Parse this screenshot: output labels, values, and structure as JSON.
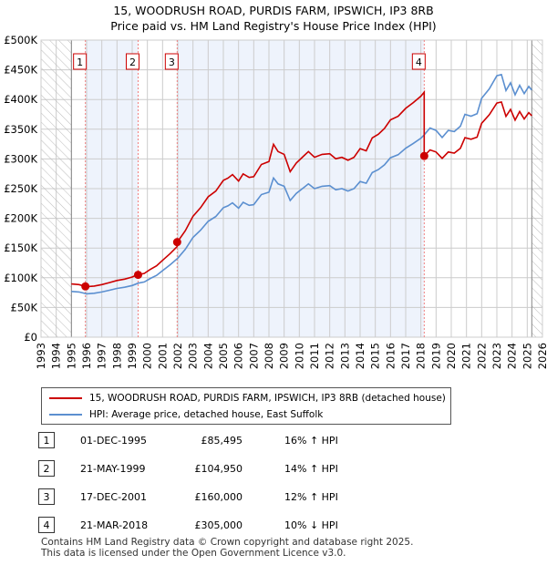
{
  "title_line1": "15, WOODRUSH ROAD, PURDIS FARM, IPSWICH, IP3 8RB",
  "title_line2": "Price paid vs. HM Land Registry's House Price Index (HPI)",
  "colors": {
    "property": "#cc0000",
    "hpi": "#5b8fd0",
    "shade": "#eef3fc"
  },
  "chart_data": {
    "type": "line",
    "xlim": [
      1993,
      2026
    ],
    "ylim": [
      0,
      500000
    ],
    "x_ticks": [
      "1993",
      "1994",
      "1995",
      "1996",
      "1997",
      "1998",
      "1999",
      "2000",
      "2001",
      "2002",
      "2003",
      "2004",
      "2005",
      "2006",
      "2007",
      "2008",
      "2009",
      "2010",
      "2011",
      "2012",
      "2013",
      "2014",
      "2015",
      "2016",
      "2017",
      "2018",
      "2019",
      "2020",
      "2021",
      "2022",
      "2023",
      "2024",
      "2025",
      "2026"
    ],
    "y_ticks": [
      {
        "v": 0,
        "label": "£0"
      },
      {
        "v": 50000,
        "label": "£50K"
      },
      {
        "v": 100000,
        "label": "£100K"
      },
      {
        "v": 150000,
        "label": "£150K"
      },
      {
        "v": 200000,
        "label": "£200K"
      },
      {
        "v": 250000,
        "label": "£250K"
      },
      {
        "v": 300000,
        "label": "£300K"
      },
      {
        "v": 350000,
        "label": "£350K"
      },
      {
        "v": 400000,
        "label": "£400K"
      },
      {
        "v": 450000,
        "label": "£450K"
      },
      {
        "v": 500000,
        "label": "£500K"
      }
    ],
    "hatched_ranges": [
      [
        1993,
        1995
      ],
      [
        2025.3,
        2026
      ]
    ],
    "hpi_series": {
      "name": "HPI: Average price, detached house, East Suffolk",
      "x": [
        1995,
        1995.5,
        1996,
        1996.5,
        1997,
        1997.5,
        1998,
        1998.5,
        1999,
        1999.4,
        1999.8,
        2000.2,
        2000.6,
        2001,
        2001.5,
        2002,
        2002.5,
        2003,
        2003.5,
        2004,
        2004.5,
        2005,
        2005.3,
        2005.6,
        2006,
        2006.3,
        2006.7,
        2007,
        2007.5,
        2008,
        2008.3,
        2008.6,
        2009,
        2009.4,
        2009.8,
        2010.3,
        2010.6,
        2011,
        2011.5,
        2012,
        2012.4,
        2012.8,
        2013.2,
        2013.6,
        2014,
        2014.4,
        2014.8,
        2015.2,
        2015.6,
        2016,
        2016.5,
        2017,
        2017.5,
        2018,
        2018.2,
        2018.6,
        2019,
        2019.4,
        2019.8,
        2020.2,
        2020.6,
        2020.9,
        2021.3,
        2021.7,
        2022,
        2022.5,
        2023,
        2023.3,
        2023.6,
        2023.9,
        2024.2,
        2024.5,
        2024.8,
        2025.1,
        2025.3
      ],
      "y": [
        77000,
        76000,
        73000,
        74000,
        76000,
        79000,
        82000,
        84000,
        87000,
        91000,
        93000,
        99000,
        104000,
        112000,
        122000,
        133000,
        148000,
        168000,
        180000,
        195000,
        203000,
        218000,
        221000,
        226000,
        217000,
        227000,
        222000,
        223000,
        240000,
        244000,
        268000,
        258000,
        254000,
        230000,
        242000,
        252000,
        258000,
        250000,
        254000,
        255000,
        248000,
        250000,
        246000,
        250000,
        262000,
        259000,
        277000,
        282000,
        290000,
        302000,
        307000,
        318000,
        326000,
        335000,
        340000,
        352000,
        348000,
        336000,
        348000,
        346000,
        355000,
        375000,
        372000,
        376000,
        402000,
        418000,
        440000,
        442000,
        415000,
        428000,
        408000,
        424000,
        410000,
        422000,
        416000
      ]
    },
    "property_series": {
      "name": "15, WOODRUSH ROAD, PURDIS FARM, IPSWICH, IP3 8RB (detached house)"
    },
    "sales": [
      {
        "n": "1",
        "x": 1995.92,
        "date": "01-DEC-1995",
        "price_value": 85495,
        "price": "£85,495",
        "hpi": "16% ↑ HPI"
      },
      {
        "n": "2",
        "x": 1999.39,
        "date": "21-MAY-1999",
        "price_value": 104950,
        "price": "£104,950",
        "hpi": "14% ↑ HPI"
      },
      {
        "n": "3",
        "x": 2001.96,
        "date": "17-DEC-2001",
        "price_value": 160000,
        "price": "£160,000",
        "hpi": "12% ↑ HPI"
      },
      {
        "n": "4",
        "x": 2018.22,
        "date": "21-MAR-2018",
        "price_value": 305000,
        "price": "£305,000",
        "hpi": "10% ↓ HPI"
      }
    ]
  },
  "footer_line1": "Contains HM Land Registry data © Crown copyright and database right 2025.",
  "footer_line2": "This data is licensed under the Open Government Licence v3.0."
}
